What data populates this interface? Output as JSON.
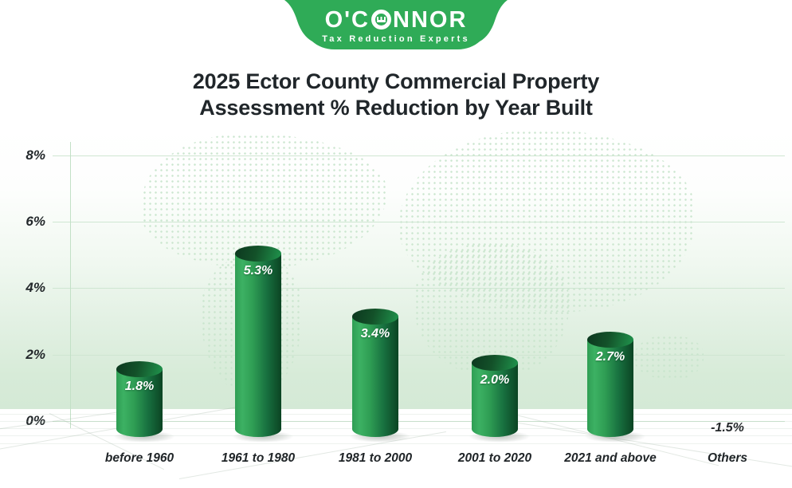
{
  "logo": {
    "brand": "O'CONNOR",
    "brand_left": "O'C",
    "brand_right": "NNOR",
    "tagline": "Tax Reduction Experts",
    "green": "#2fab57"
  },
  "title": {
    "line1": "2025 Ector County Commercial Property",
    "line2": "Assessment % Reduction by Year Built"
  },
  "chart_data": {
    "type": "bar",
    "title": "2025 Ector County Commercial Property Assessment % Reduction by Year Built",
    "categories": [
      "before 1960",
      "1961 to 1980",
      "1981 to 2000",
      "2001 to 2020",
      "2021 and above",
      "Others"
    ],
    "values": [
      1.8,
      5.3,
      3.4,
      2.0,
      2.7,
      -1.5
    ],
    "value_labels": [
      "1.8%",
      "5.3%",
      "3.4%",
      "2.0%",
      "2.7%",
      "-1.5%"
    ],
    "xlabel": "",
    "ylabel": "",
    "yticks": [
      "8%",
      "6%",
      "4%",
      "2%",
      "0%"
    ],
    "ytick_values": [
      8,
      6,
      4,
      2,
      0
    ],
    "ylim": [
      0,
      8.5
    ],
    "grid": true,
    "legend": false,
    "bar_style": "3d-cylinder",
    "bar_color_light": "#3cb163",
    "bar_color_dark": "#0b4423",
    "gridline_color": "#cfe6d2",
    "background_accent": "#d4e9d6"
  }
}
